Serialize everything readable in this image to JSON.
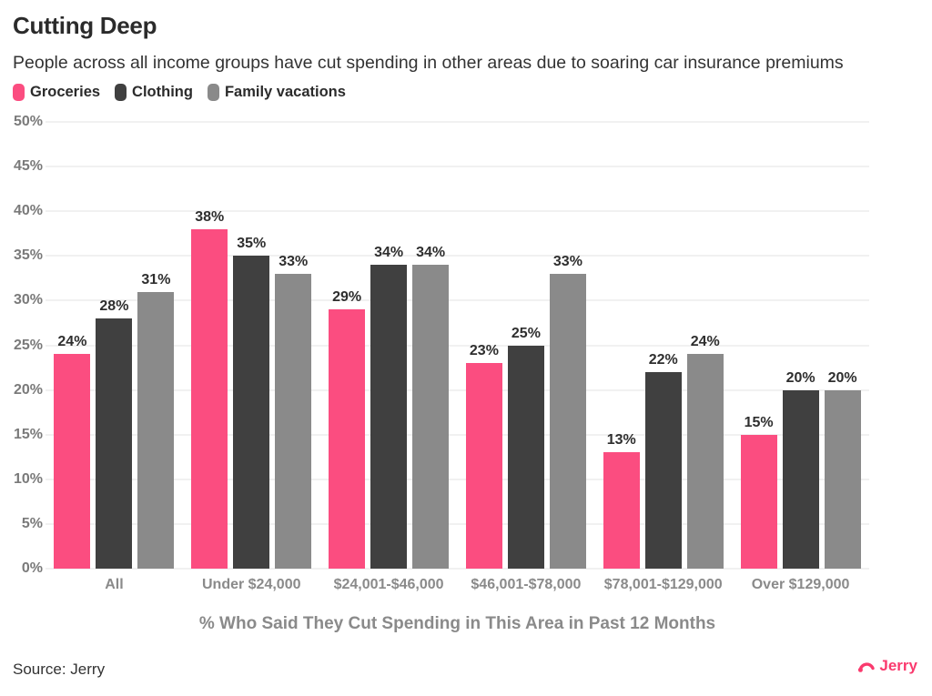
{
  "header": {
    "title": "Cutting Deep",
    "subtitle": "People across all income groups have cut spending in other areas due to soaring car insurance premiums"
  },
  "chart_data": {
    "type": "bar",
    "categories": [
      "All",
      "Under $24,000",
      "$24,001-$46,000",
      "$46,001-$78,000",
      "$78,001-$129,000",
      "Over $129,000"
    ],
    "series": [
      {
        "name": "Groceries",
        "color": "#fb4d80",
        "values": [
          24,
          38,
          29,
          23,
          13,
          15
        ]
      },
      {
        "name": "Clothing",
        "color": "#404040",
        "values": [
          28,
          35,
          34,
          25,
          22,
          20
        ]
      },
      {
        "name": "Family vacations",
        "color": "#8a8a8a",
        "values": [
          31,
          33,
          34,
          33,
          24,
          20
        ]
      }
    ],
    "xlabel": "% Who Said They Cut Spending in This Area in Past 12 Months",
    "ylabel": "",
    "ylim": [
      0,
      50
    ],
    "ytick_step": 5,
    "value_suffix": "%",
    "grid": true,
    "legend_position": "top-left",
    "value_labels": true
  },
  "footer": {
    "source": "Source: Jerry",
    "brand": "Jerry",
    "brand_color": "#fa3a6e"
  }
}
